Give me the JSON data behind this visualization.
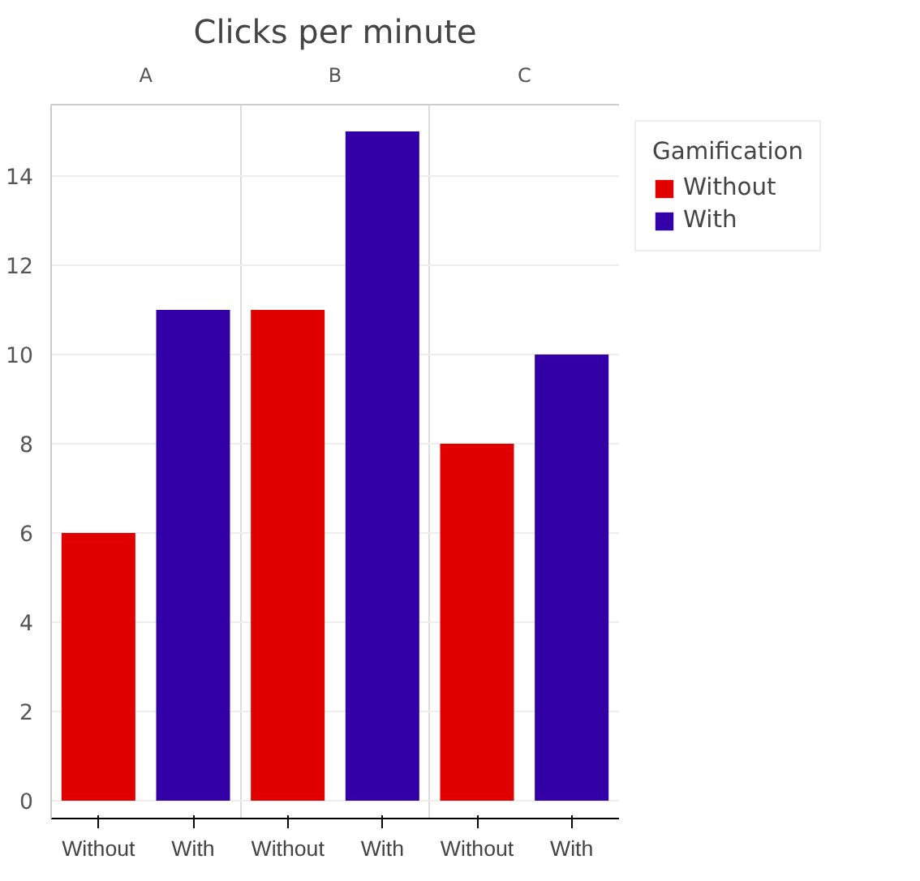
{
  "chart_data": {
    "type": "bar",
    "title": "Clicks per minute",
    "legend_title": "Gamification",
    "categories": [
      "A",
      "B",
      "C"
    ],
    "series": [
      {
        "name": "Without",
        "color": "#e00000",
        "values": [
          6,
          11,
          8
        ]
      },
      {
        "name": "With",
        "color": "#3300a8",
        "values": [
          11,
          15,
          10
        ]
      }
    ],
    "ylim": [
      -0.4,
      15.6
    ],
    "yticks": [
      0,
      2,
      4,
      6,
      8,
      10,
      12,
      14
    ],
    "grid": true,
    "legend": "top right"
  }
}
